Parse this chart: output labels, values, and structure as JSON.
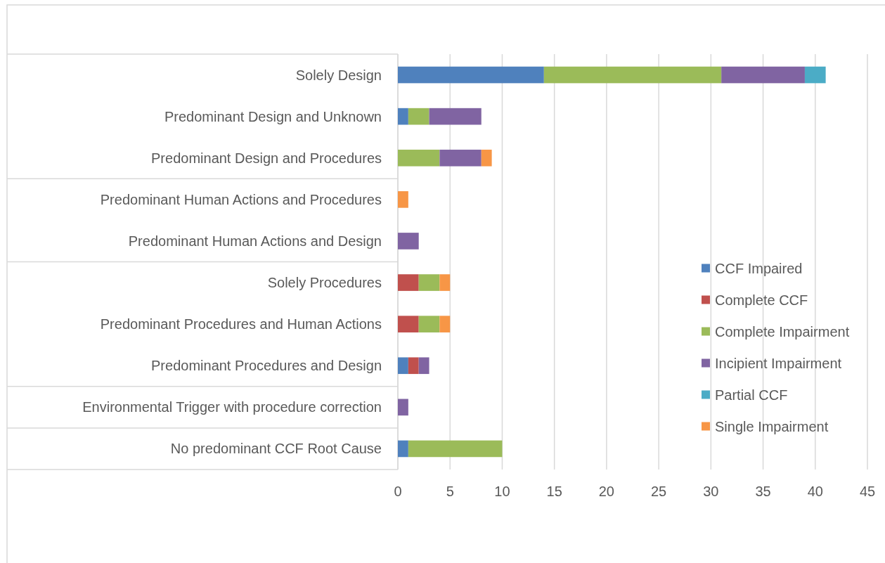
{
  "chart_data": {
    "type": "bar",
    "orientation": "horizontal",
    "stacked": true,
    "categories": [
      "Solely Design",
      "Predominant Design and Unknown",
      "Predominant Design and Procedures",
      "Predominant Human Actions and Procedures",
      "Predominant Human Actions and Design",
      "Solely Procedures",
      "Predominant Procedures and Human Actions",
      "Predominant Procedures and Design",
      "Environmental Trigger with procedure correction",
      "No predominant CCF Root Cause"
    ],
    "series": [
      {
        "name": "CCF Impaired",
        "color": "#4f81bd",
        "values": [
          14,
          1,
          null,
          null,
          null,
          null,
          null,
          1,
          null,
          1
        ]
      },
      {
        "name": "Complete CCF",
        "color": "#c0504d",
        "values": [
          null,
          null,
          null,
          null,
          null,
          2,
          2,
          1,
          null,
          null
        ]
      },
      {
        "name": "Complete Impairment",
        "color": "#9bbb59",
        "values": [
          17,
          2,
          4,
          null,
          null,
          2,
          2,
          null,
          null,
          9
        ]
      },
      {
        "name": "Incipient Impairment",
        "color": "#8064a2",
        "values": [
          8,
          5,
          4,
          null,
          2,
          null,
          null,
          1,
          1,
          null
        ]
      },
      {
        "name": "Partial CCF",
        "color": "#4bacc6",
        "values": [
          2,
          null,
          null,
          null,
          null,
          null,
          null,
          null,
          null,
          null
        ]
      },
      {
        "name": "Single Impairment",
        "color": "#f79646",
        "values": [
          null,
          null,
          1,
          1,
          null,
          1,
          1,
          null,
          null,
          null
        ]
      }
    ],
    "xlim": [
      0,
      45
    ],
    "xticks": [
      0,
      5,
      10,
      15,
      20,
      25,
      30,
      35,
      40,
      45
    ],
    "grid": "x",
    "legend": "right"
  }
}
